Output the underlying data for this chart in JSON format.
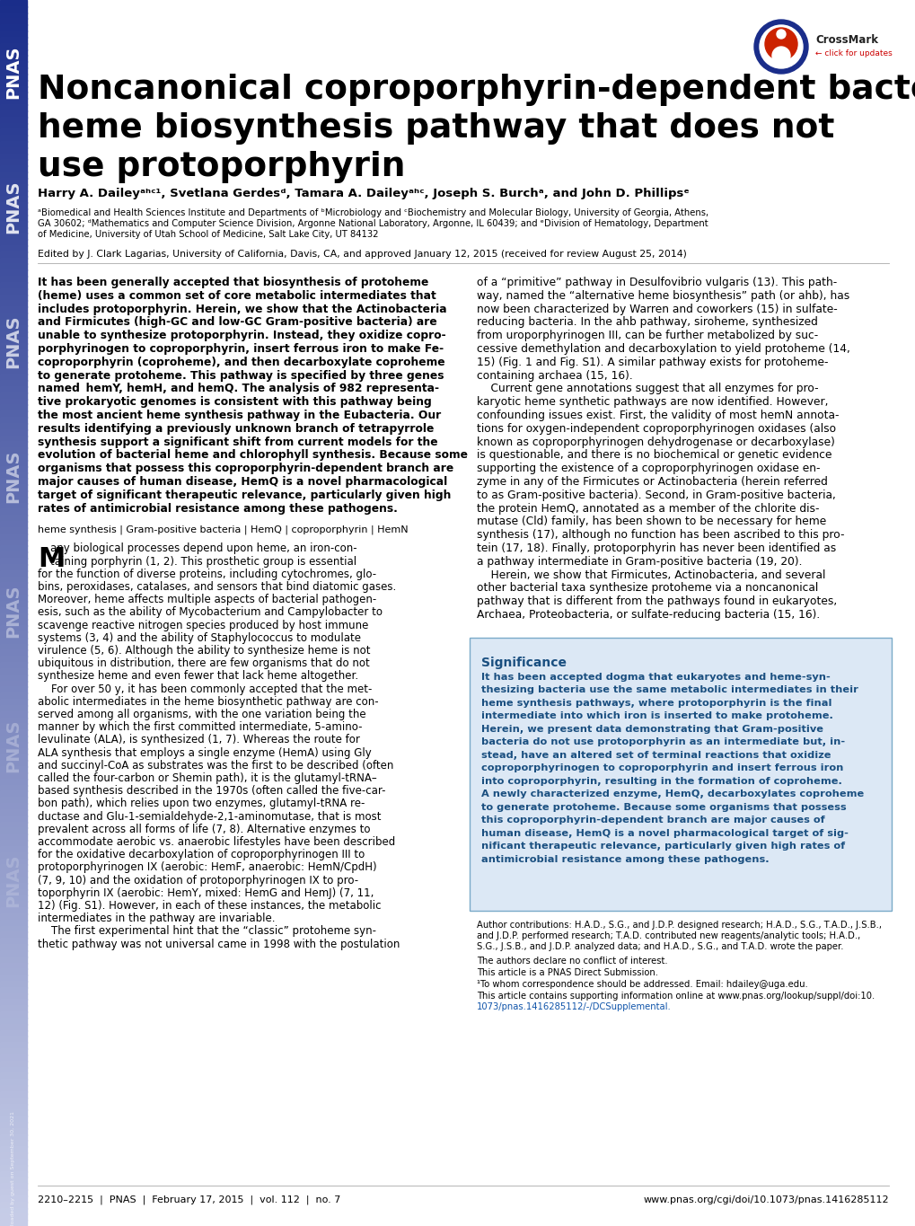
{
  "title_line1": "Noncanonical coproporphyrin-dependent bacterial",
  "title_line2": "heme biosynthesis pathway that does not",
  "title_line3": "use protoporphyrin",
  "authors": "Harry A. Daileyᵃʰᶜ¹, Svetlana Gerdesᵈ, Tamara A. Daileyᵃʰᶜ, Joseph S. Burchᵃ, and John D. Phillipsᵉ",
  "affiliations_line1": "ᵃBiomedical and Health Sciences Institute and Departments of ᵇMicrobiology and ᶜBiochemistry and Molecular Biology, University of Georgia, Athens,",
  "affiliations_line2": "GA 30602; ᵈMathematics and Computer Science Division, Argonne National Laboratory, Argonne, IL 60439; and ᵉDivision of Hematology, Department",
  "affiliations_line3": "of Medicine, University of Utah School of Medicine, Salt Lake City, UT 84132",
  "edited_by": "Edited by J. Clark Lagarias, University of California, Davis, CA, and approved January 12, 2015 (received for review August 25, 2014)",
  "keywords": "heme synthesis | Gram-positive bacteria | HemQ | coproporphyrin | HemN",
  "significance_title": "Significance",
  "author_contributions": "Author contributions: H.A.D., S.G., and J.D.P. designed research; H.A.D., S.G., T.A.D., J.S.B., and J.D.P. performed research; T.A.D. contributed new reagents/analytic tools; H.A.D., S.G., J.S.B., and J.D.P. analyzed data; and H.A.D., S.G., and T.A.D. wrote the paper.",
  "conflict": "The authors declare no conflict of interest.",
  "direct_submission": "This article is a PNAS Direct Submission.",
  "correspondence": "¹To whom correspondence should be addressed. Email: hdailey@uga.edu.",
  "supplemental1": "This article contains supporting information online at www.pnas.org/lookup/suppl/doi:10.",
  "supplemental2": "1073/pnas.1416285112/-/DCSupplemental.",
  "footer_left": "2210–2215  |  PNAS  |  February 17, 2015  |  vol. 112  |  no. 7",
  "footer_right": "www.pnas.org/cgi/doi/10.1073/pnas.1416285112",
  "sidebar_dark": "#1a2d8a",
  "sidebar_light": "#c8cee8",
  "significance_bg": "#dce8f5",
  "significance_border": "#7aaac8",
  "background_color": "#ffffff",
  "text_color": "#000000",
  "blue_text_color": "#1a4f80"
}
